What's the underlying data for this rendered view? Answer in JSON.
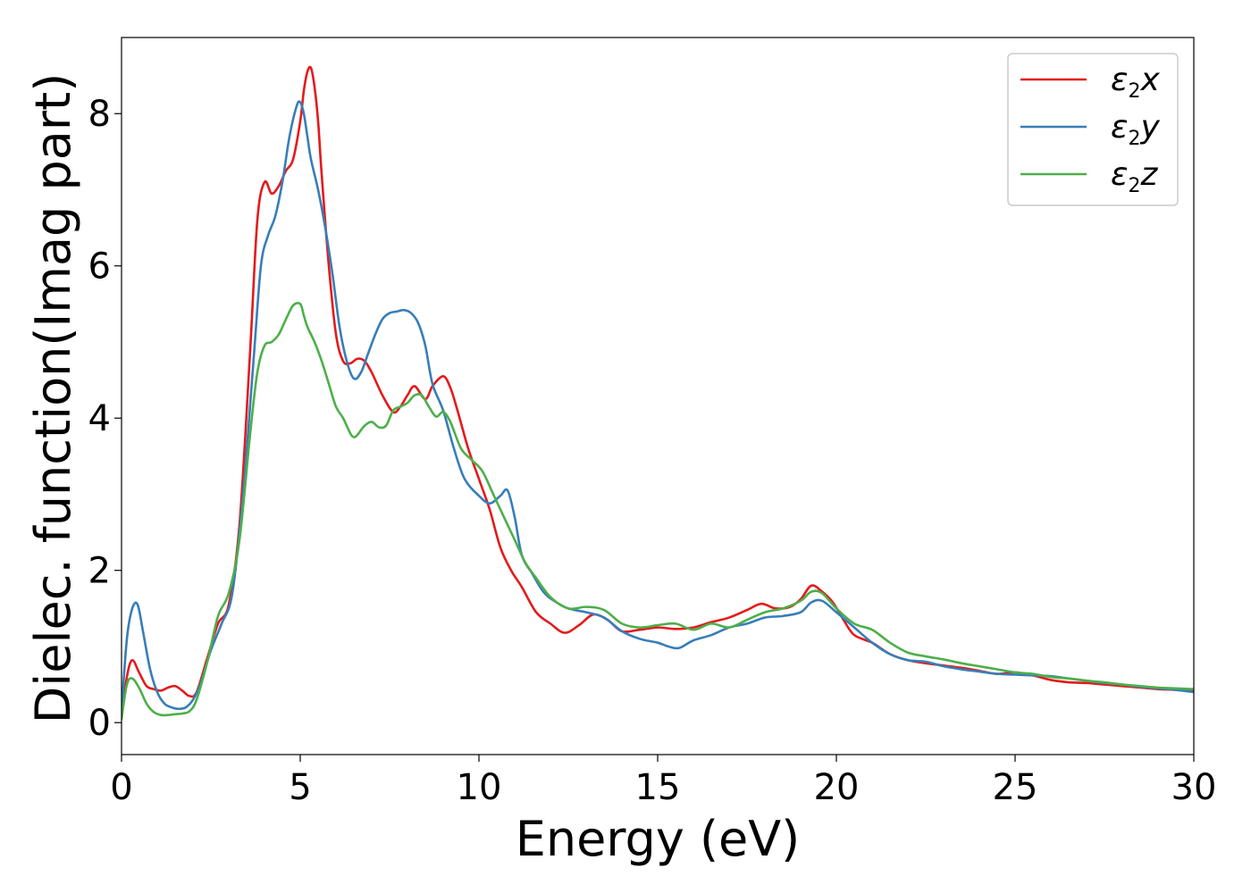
{
  "chart_data": {
    "type": "line",
    "title": "",
    "xlabel": "Energy (eV)",
    "ylabel": "Dielec. function(Imag part)",
    "xlim": [
      0,
      30
    ],
    "ylim": [
      -0.42,
      9.0
    ],
    "xticks": [
      0,
      5,
      10,
      15,
      20,
      25,
      30
    ],
    "yticks": [
      0,
      2,
      4,
      6,
      8
    ],
    "grid": false,
    "legend_position": "top-right",
    "series": [
      {
        "name": "ε2x",
        "legend_base": "ε",
        "legend_sub": "2",
        "legend_tail": "x",
        "color": "#e41a1c",
        "x": [
          0,
          0.15,
          0.3,
          0.5,
          0.7,
          0.9,
          1.1,
          1.3,
          1.5,
          1.7,
          1.9,
          2.1,
          2.4,
          2.7,
          3.0,
          3.3,
          3.6,
          3.8,
          4.0,
          4.2,
          4.4,
          4.6,
          4.8,
          5.0,
          5.1,
          5.2,
          5.3,
          5.4,
          5.5,
          5.6,
          5.8,
          6.0,
          6.2,
          6.4,
          6.6,
          6.8,
          7.0,
          7.3,
          7.6,
          7.8,
          8.0,
          8.2,
          8.5,
          8.7,
          9.0,
          9.2,
          9.4,
          9.7,
          10.0,
          10.3,
          10.6,
          10.9,
          11.2,
          11.6,
          12.0,
          12.4,
          12.8,
          13.2,
          13.6,
          14.0,
          14.5,
          15.0,
          15.5,
          16.0,
          16.5,
          17.0,
          17.5,
          17.9,
          18.3,
          18.7,
          19.0,
          19.3,
          19.6,
          19.9,
          20.2,
          20.5,
          21.0,
          21.5,
          22.0,
          22.5,
          23.0,
          23.5,
          24.0,
          24.5,
          25.0,
          25.5,
          26.0,
          26.5,
          27.0,
          27.5,
          28.0,
          28.5,
          29.0,
          29.5,
          30.0
        ],
        "values": [
          0.05,
          0.6,
          0.82,
          0.65,
          0.48,
          0.44,
          0.42,
          0.46,
          0.48,
          0.42,
          0.35,
          0.4,
          0.85,
          1.3,
          1.55,
          2.6,
          4.9,
          6.6,
          7.1,
          6.95,
          7.05,
          7.25,
          7.4,
          7.9,
          8.3,
          8.55,
          8.6,
          8.35,
          7.9,
          7.2,
          6.0,
          5.1,
          4.75,
          4.72,
          4.78,
          4.75,
          4.6,
          4.3,
          4.08,
          4.15,
          4.3,
          4.42,
          4.25,
          4.42,
          4.55,
          4.4,
          4.1,
          3.6,
          3.2,
          2.8,
          2.3,
          2.0,
          1.78,
          1.45,
          1.3,
          1.18,
          1.28,
          1.42,
          1.35,
          1.2,
          1.22,
          1.25,
          1.23,
          1.25,
          1.32,
          1.38,
          1.48,
          1.56,
          1.5,
          1.52,
          1.62,
          1.8,
          1.72,
          1.58,
          1.35,
          1.15,
          1.05,
          0.9,
          0.82,
          0.78,
          0.75,
          0.72,
          0.68,
          0.64,
          0.66,
          0.62,
          0.56,
          0.53,
          0.52,
          0.5,
          0.48,
          0.46,
          0.44,
          0.43,
          0.41
        ]
      },
      {
        "name": "ε2y",
        "legend_base": "ε",
        "legend_sub": "2",
        "legend_tail": "y",
        "color": "#377eb8",
        "x": [
          0,
          0.15,
          0.3,
          0.45,
          0.6,
          0.8,
          1.0,
          1.2,
          1.4,
          1.6,
          1.8,
          2.0,
          2.2,
          2.5,
          2.8,
          3.1,
          3.4,
          3.7,
          3.9,
          4.1,
          4.3,
          4.5,
          4.7,
          4.9,
          5.0,
          5.1,
          5.2,
          5.3,
          5.5,
          5.7,
          5.9,
          6.1,
          6.3,
          6.5,
          6.7,
          6.9,
          7.1,
          7.3,
          7.5,
          7.7,
          7.9,
          8.1,
          8.3,
          8.5,
          8.7,
          9.0,
          9.3,
          9.6,
          10.0,
          10.3,
          10.6,
          10.8,
          11.0,
          11.2,
          11.5,
          11.8,
          12.1,
          12.5,
          13.0,
          13.5,
          14.0,
          14.5,
          15.0,
          15.3,
          15.6,
          16.0,
          16.5,
          17.0,
          17.5,
          18.0,
          18.5,
          19.0,
          19.3,
          19.6,
          20.0,
          20.5,
          21.0,
          21.5,
          22.0,
          22.5,
          23.0,
          23.5,
          24.0,
          24.5,
          25.0,
          25.5,
          26.0,
          26.5,
          27.0,
          27.5,
          28.0,
          28.5,
          29.0,
          29.5,
          30.0
        ],
        "values": [
          0.15,
          1.1,
          1.5,
          1.55,
          1.2,
          0.7,
          0.4,
          0.25,
          0.2,
          0.18,
          0.2,
          0.3,
          0.5,
          0.95,
          1.3,
          1.7,
          3.0,
          4.8,
          6.0,
          6.4,
          6.65,
          7.1,
          7.7,
          8.1,
          8.15,
          8.0,
          7.7,
          7.4,
          7.0,
          6.5,
          5.9,
          5.2,
          4.75,
          4.52,
          4.6,
          4.85,
          5.1,
          5.3,
          5.38,
          5.4,
          5.42,
          5.38,
          5.25,
          4.95,
          4.45,
          4.1,
          3.6,
          3.2,
          2.98,
          2.88,
          2.98,
          3.05,
          2.7,
          2.2,
          1.95,
          1.72,
          1.6,
          1.5,
          1.45,
          1.38,
          1.2,
          1.1,
          1.05,
          1.0,
          0.98,
          1.08,
          1.15,
          1.25,
          1.3,
          1.38,
          1.4,
          1.45,
          1.58,
          1.6,
          1.45,
          1.25,
          1.05,
          0.9,
          0.82,
          0.8,
          0.74,
          0.7,
          0.67,
          0.64,
          0.63,
          0.62,
          0.61,
          0.58,
          0.55,
          0.52,
          0.5,
          0.47,
          0.45,
          0.43,
          0.4
        ]
      },
      {
        "name": "ε2z",
        "legend_base": "ε",
        "legend_sub": "2",
        "legend_tail": "z",
        "color": "#4daf4a",
        "x": [
          0,
          0.15,
          0.3,
          0.5,
          0.7,
          0.9,
          1.1,
          1.3,
          1.5,
          1.7,
          1.9,
          2.1,
          2.4,
          2.7,
          3.0,
          3.3,
          3.6,
          3.8,
          4.0,
          4.2,
          4.4,
          4.6,
          4.8,
          5.0,
          5.1,
          5.2,
          5.4,
          5.6,
          5.8,
          6.0,
          6.2,
          6.4,
          6.5,
          6.6,
          6.8,
          7.0,
          7.2,
          7.4,
          7.6,
          7.8,
          8.0,
          8.2,
          8.4,
          8.6,
          8.8,
          9.0,
          9.2,
          9.5,
          9.8,
          10.1,
          10.4,
          10.7,
          11.0,
          11.3,
          11.6,
          12.0,
          12.5,
          13.0,
          13.5,
          14.0,
          14.5,
          15.0,
          15.5,
          16.0,
          16.5,
          17.0,
          17.5,
          18.0,
          18.5,
          19.0,
          19.3,
          19.6,
          20.0,
          20.5,
          21.0,
          21.5,
          22.0,
          22.5,
          23.0,
          23.5,
          24.0,
          24.5,
          25.0,
          25.5,
          26.0,
          26.5,
          27.0,
          27.5,
          28.0,
          28.5,
          29.0,
          29.5,
          30.0
        ],
        "values": [
          0.05,
          0.5,
          0.58,
          0.45,
          0.25,
          0.14,
          0.1,
          0.1,
          0.11,
          0.12,
          0.15,
          0.3,
          0.8,
          1.4,
          1.7,
          2.4,
          3.8,
          4.6,
          4.95,
          5.0,
          5.1,
          5.3,
          5.48,
          5.5,
          5.35,
          5.2,
          5.0,
          4.75,
          4.45,
          4.15,
          4.0,
          3.8,
          3.75,
          3.78,
          3.9,
          3.95,
          3.88,
          3.9,
          4.1,
          4.15,
          4.2,
          4.3,
          4.3,
          4.15,
          4.02,
          4.08,
          3.95,
          3.6,
          3.45,
          3.3,
          3.0,
          2.7,
          2.4,
          2.1,
          1.9,
          1.65,
          1.5,
          1.52,
          1.48,
          1.3,
          1.25,
          1.28,
          1.3,
          1.22,
          1.3,
          1.25,
          1.35,
          1.45,
          1.5,
          1.6,
          1.72,
          1.7,
          1.5,
          1.3,
          1.22,
          1.05,
          0.92,
          0.87,
          0.83,
          0.78,
          0.74,
          0.7,
          0.66,
          0.64,
          0.6,
          0.58,
          0.55,
          0.53,
          0.5,
          0.48,
          0.46,
          0.45,
          0.44
        ]
      }
    ]
  }
}
